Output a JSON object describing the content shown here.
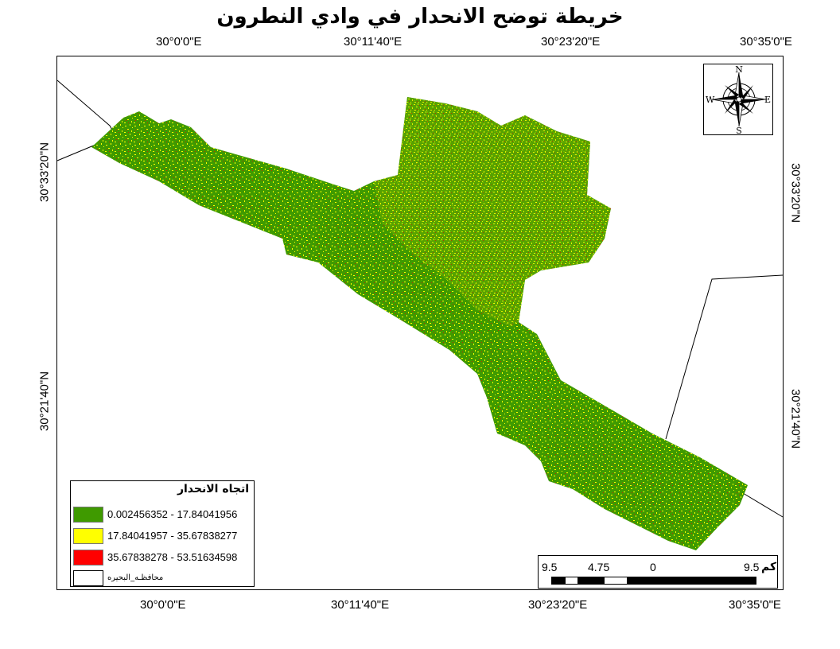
{
  "title": "خريطة توضح الانحدار في وادي النطرون",
  "top_lon_labels": [
    "30°0'0\"E",
    "30°11'40\"E",
    "30°23'20\"E",
    "30°35'0\"E"
  ],
  "bottom_lon_labels": [
    "30°0'0\"E",
    "30°11'40\"E",
    "30°23'20\"E",
    "30°35'0\"E"
  ],
  "left_lat_labels": [
    "30°33'20\"N",
    "30°21'40\"N"
  ],
  "right_lat_labels": [
    "30°33'20\"N",
    "30°21'40\"N"
  ],
  "north_arrow": {
    "icon": "compass-rose-icon",
    "n": "N",
    "s": "S",
    "e": "E",
    "w": "W"
  },
  "legend": {
    "title": "اتجاه الانحدار",
    "items": [
      {
        "label": "0.002456352 - 17.84041956",
        "color": "#3f9a00"
      },
      {
        "label": "17.84041957 - 35.67838277",
        "color": "#ffff00"
      },
      {
        "label": "35.67838278 - 53.51634598",
        "color": "#ff0000"
      },
      {
        "label": "محافظـه_البحيره",
        "color": "#ffffff"
      }
    ]
  },
  "scale_bar": {
    "labels": [
      "9.5",
      "4.75",
      "0",
      "9.5"
    ],
    "unit": "كم"
  },
  "colors": {
    "green": "#3f9a00",
    "yellow": "#ffff00",
    "red": "#ff0000",
    "boundary": "#000000"
  }
}
